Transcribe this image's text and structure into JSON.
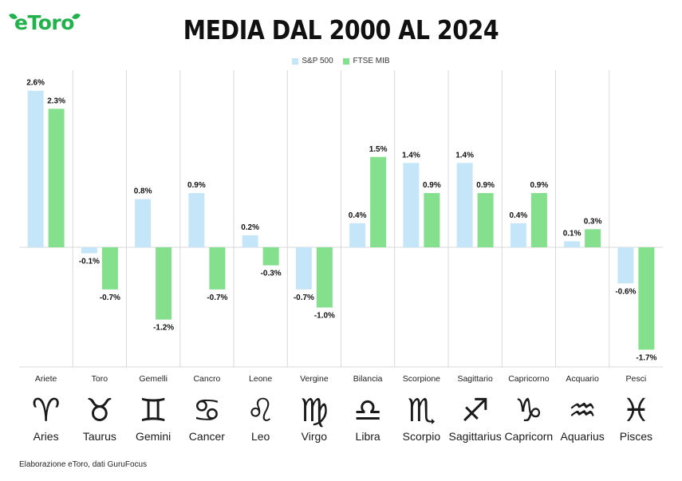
{
  "brand": {
    "logo_text": "eToro",
    "color": "#22b24c"
  },
  "title": "MEDIA DAL 2000 AL 2024",
  "footnote": "Elaborazione eToro, dati GuruFocus",
  "chart_data": {
    "type": "bar",
    "title": "MEDIA DAL 2000 AL 2024",
    "legend_position": "top-center",
    "grid": "vertical separators only",
    "ylim": [
      -2.0,
      2.8
    ],
    "categories": [
      "Ariete",
      "Toro",
      "Gemelli",
      "Cancro",
      "Leone",
      "Vergine",
      "Bilancia",
      "Scorpione",
      "Sagittario",
      "Capricorno",
      "Acquario",
      "Pesci"
    ],
    "series": [
      {
        "name": "S&P 500",
        "color": "#c5e6f8",
        "values": [
          2.6,
          -0.1,
          0.8,
          0.9,
          0.2,
          -0.7,
          0.4,
          1.4,
          1.4,
          0.4,
          0.1,
          -0.6
        ],
        "labels": [
          "2.6%",
          "-0.1%",
          "0.8%",
          "0.9%",
          "0.2%",
          "-0.7%",
          "0.4%",
          "1.4%",
          "1.4%",
          "0.4%",
          "0.1%",
          "-0.6%"
        ]
      },
      {
        "name": "FTSE MIB",
        "color": "#85e08e",
        "values": [
          2.3,
          -0.7,
          -1.2,
          -0.7,
          -0.3,
          -1.0,
          1.5,
          0.9,
          0.9,
          0.9,
          0.3,
          -1.7
        ],
        "labels": [
          "2.3%",
          "-0.7%",
          "-1.2%",
          "-0.7%",
          "-0.3%",
          "-1.0%",
          "1.5%",
          "0.9%",
          "0.9%",
          "0.9%",
          "0.3%",
          "-1.7%"
        ]
      }
    ],
    "zodiac": [
      {
        "symbol": "♈",
        "name": "Aries",
        "icon": "aries-icon"
      },
      {
        "symbol": "♉",
        "name": "Taurus",
        "icon": "taurus-icon"
      },
      {
        "symbol": "♊",
        "name": "Gemini",
        "icon": "gemini-icon"
      },
      {
        "symbol": "♋",
        "name": "Cancer",
        "icon": "cancer-icon"
      },
      {
        "symbol": "♌",
        "name": "Leo",
        "icon": "leo-icon"
      },
      {
        "symbol": "♍",
        "name": "Virgo",
        "icon": "virgo-icon"
      },
      {
        "symbol": "♎",
        "name": "Libra",
        "icon": "libra-icon"
      },
      {
        "symbol": "♏",
        "name": "Scorpio",
        "icon": "scorpio-icon"
      },
      {
        "symbol": "♐",
        "name": "Sagittarius",
        "icon": "sagittarius-icon"
      },
      {
        "symbol": "♑",
        "name": "Capricorn",
        "icon": "capricorn-icon"
      },
      {
        "symbol": "♒",
        "name": "Aquarius",
        "icon": "aquarius-icon"
      },
      {
        "symbol": "♓",
        "name": "Pisces",
        "icon": "pisces-icon"
      }
    ]
  }
}
